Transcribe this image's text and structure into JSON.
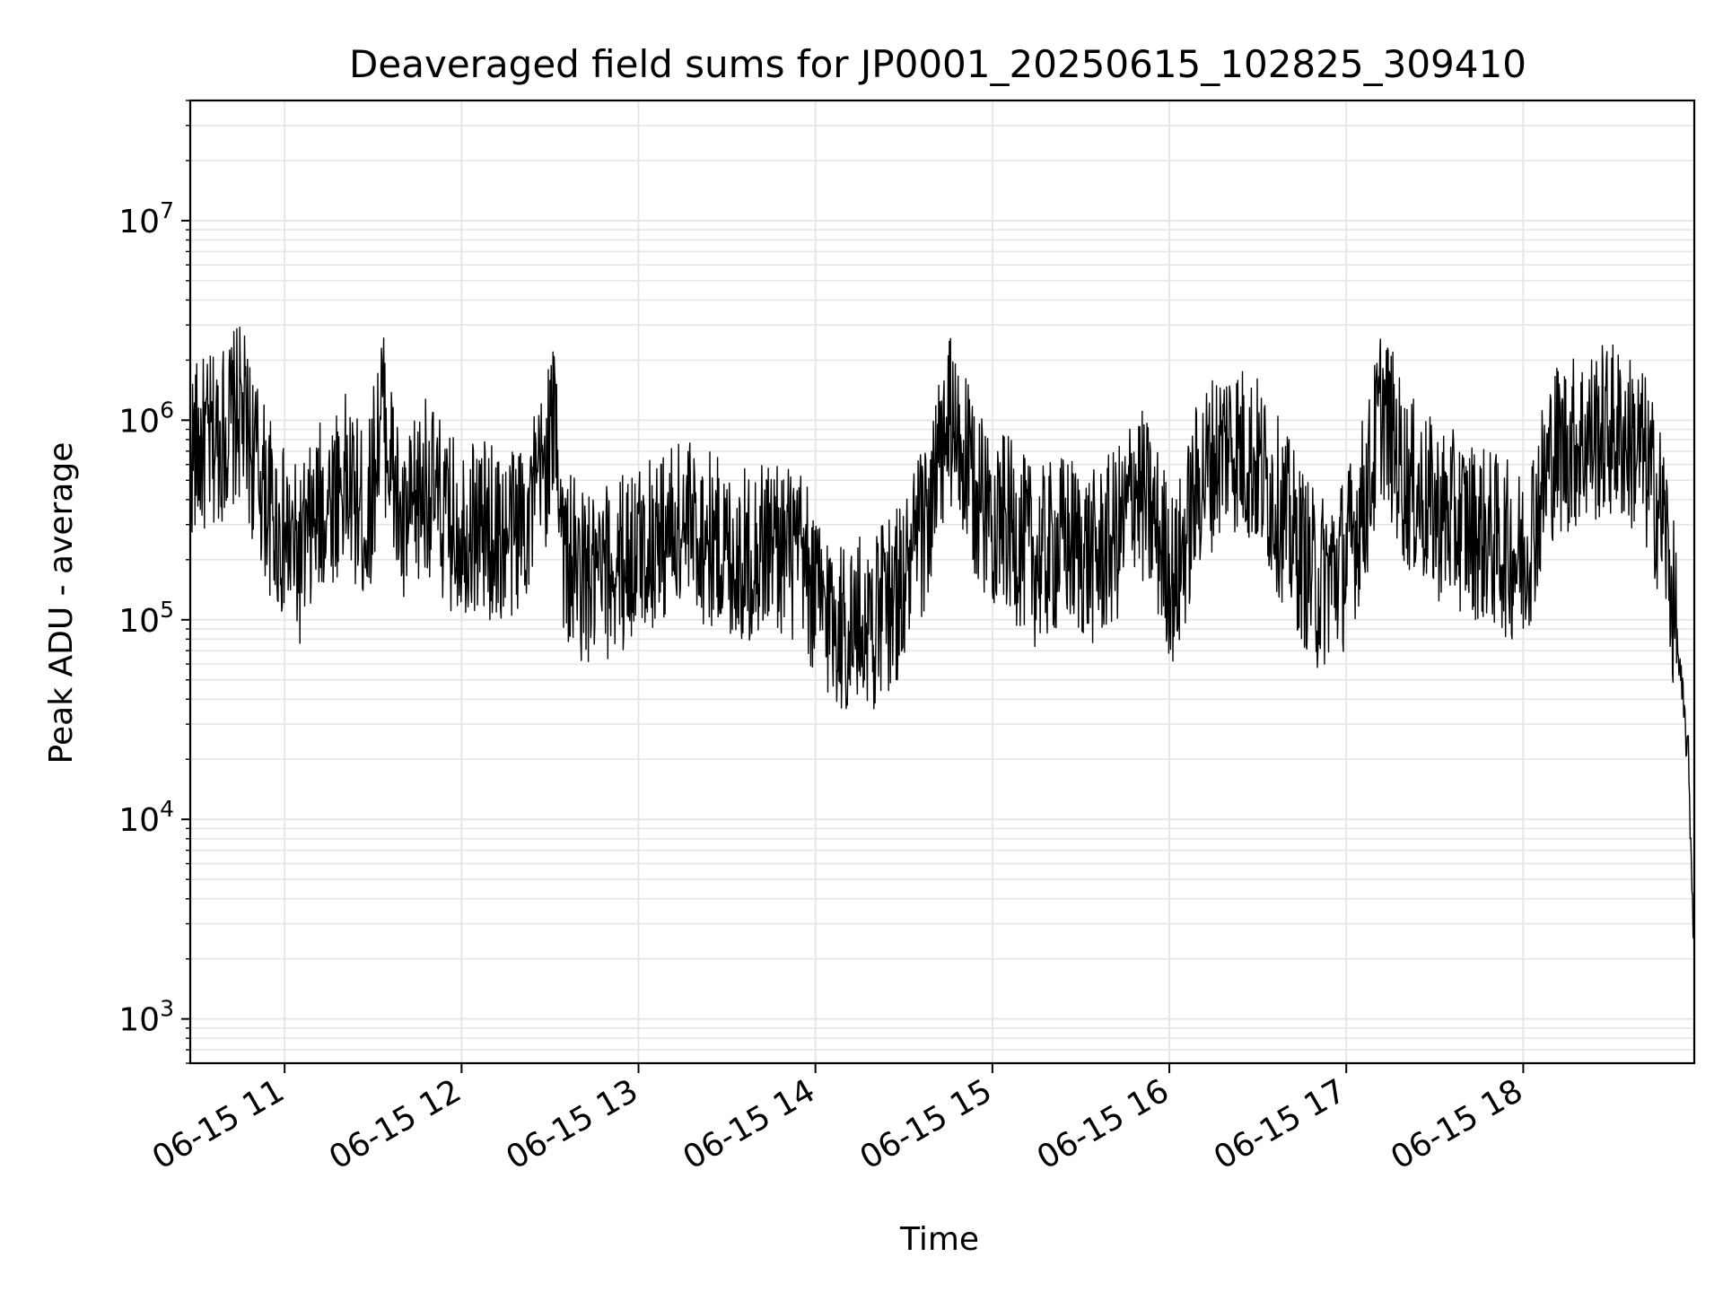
{
  "chart_data": {
    "type": "line",
    "title": "Deaveraged field sums for JP0001_20250615_102825_309410",
    "xlabel": "Time",
    "ylabel": "Peak ADU - average",
    "y_scale": "log",
    "ylim": [
      600,
      40000000
    ],
    "xlim": [
      "06-15 10:28",
      "06-15 18:58"
    ],
    "x_ticks": [
      "06-15 11",
      "06-15 12",
      "06-15 13",
      "06-15 14",
      "06-15 15",
      "06-15 16",
      "06-15 17",
      "06-15 18"
    ],
    "y_ticks": [
      {
        "base": "10",
        "exp": "3",
        "value": 1000
      },
      {
        "base": "10",
        "exp": "4",
        "value": 10000
      },
      {
        "base": "10",
        "exp": "5",
        "value": 100000
      },
      {
        "base": "10",
        "exp": "6",
        "value": 1000000
      },
      {
        "base": "10",
        "exp": "7",
        "value": 10000000
      }
    ],
    "grid": true,
    "line_color": "#000000",
    "grid_color": "#e6e6e6",
    "series": [
      {
        "x": [
          "10:28",
          "10:35",
          "10:45",
          "10:52",
          "10:57",
          "11:05",
          "11:12",
          "11:20",
          "11:28",
          "11:33",
          "11:40",
          "11:48",
          "11:55",
          "12:05",
          "12:15",
          "12:25",
          "12:32",
          "12:35",
          "12:45",
          "12:55",
          "13:05",
          "13:15",
          "13:25",
          "13:35",
          "13:45",
          "13:55",
          "14:00",
          "14:10",
          "14:20",
          "14:30",
          "14:40",
          "14:45",
          "14:55",
          "15:05",
          "15:15",
          "15:25",
          "15:35",
          "15:45",
          "15:48",
          "15:55",
          "16:02",
          "16:10",
          "16:20",
          "16:30",
          "16:40",
          "16:50",
          "17:00",
          "17:08",
          "17:12",
          "17:20",
          "17:30",
          "17:40",
          "17:50",
          "18:00",
          "18:10",
          "18:20",
          "18:30",
          "18:40",
          "18:48",
          "18:52",
          "18:56",
          "18:58"
        ],
        "y": [
          700000,
          750000,
          1100000,
          500000,
          300000,
          200000,
          350000,
          500000,
          300000,
          1200000,
          250000,
          500000,
          300000,
          300000,
          250000,
          400000,
          1000000,
          200000,
          150000,
          200000,
          250000,
          300000,
          250000,
          200000,
          250000,
          200000,
          130000,
          90000,
          100000,
          150000,
          400000,
          1000000,
          400000,
          300000,
          200000,
          250000,
          200000,
          300000,
          500000,
          300000,
          150000,
          500000,
          800000,
          600000,
          300000,
          150000,
          200000,
          500000,
          1200000,
          500000,
          350000,
          300000,
          250000,
          200000,
          700000,
          800000,
          900000,
          700000,
          300000,
          80000,
          20000,
          2000
        ]
      }
    ]
  }
}
